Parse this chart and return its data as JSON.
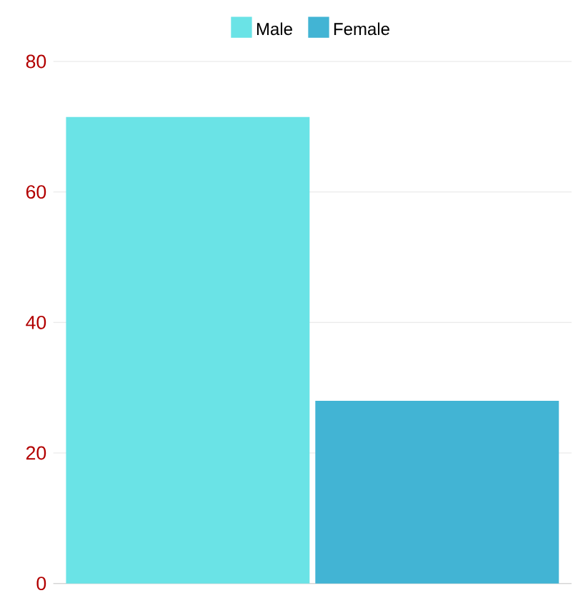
{
  "chart_data": {
    "type": "bar",
    "categories": [
      null
    ],
    "series": [
      {
        "name": "Male",
        "color": "#6ae3e6",
        "values": [
          71.5
        ]
      },
      {
        "name": "Female",
        "color": "#42b4d4",
        "values": [
          28
        ]
      }
    ],
    "ylim": [
      0,
      80
    ],
    "yticks": [
      0,
      20,
      40,
      60,
      80
    ],
    "grid": "y",
    "legend": "top"
  }
}
